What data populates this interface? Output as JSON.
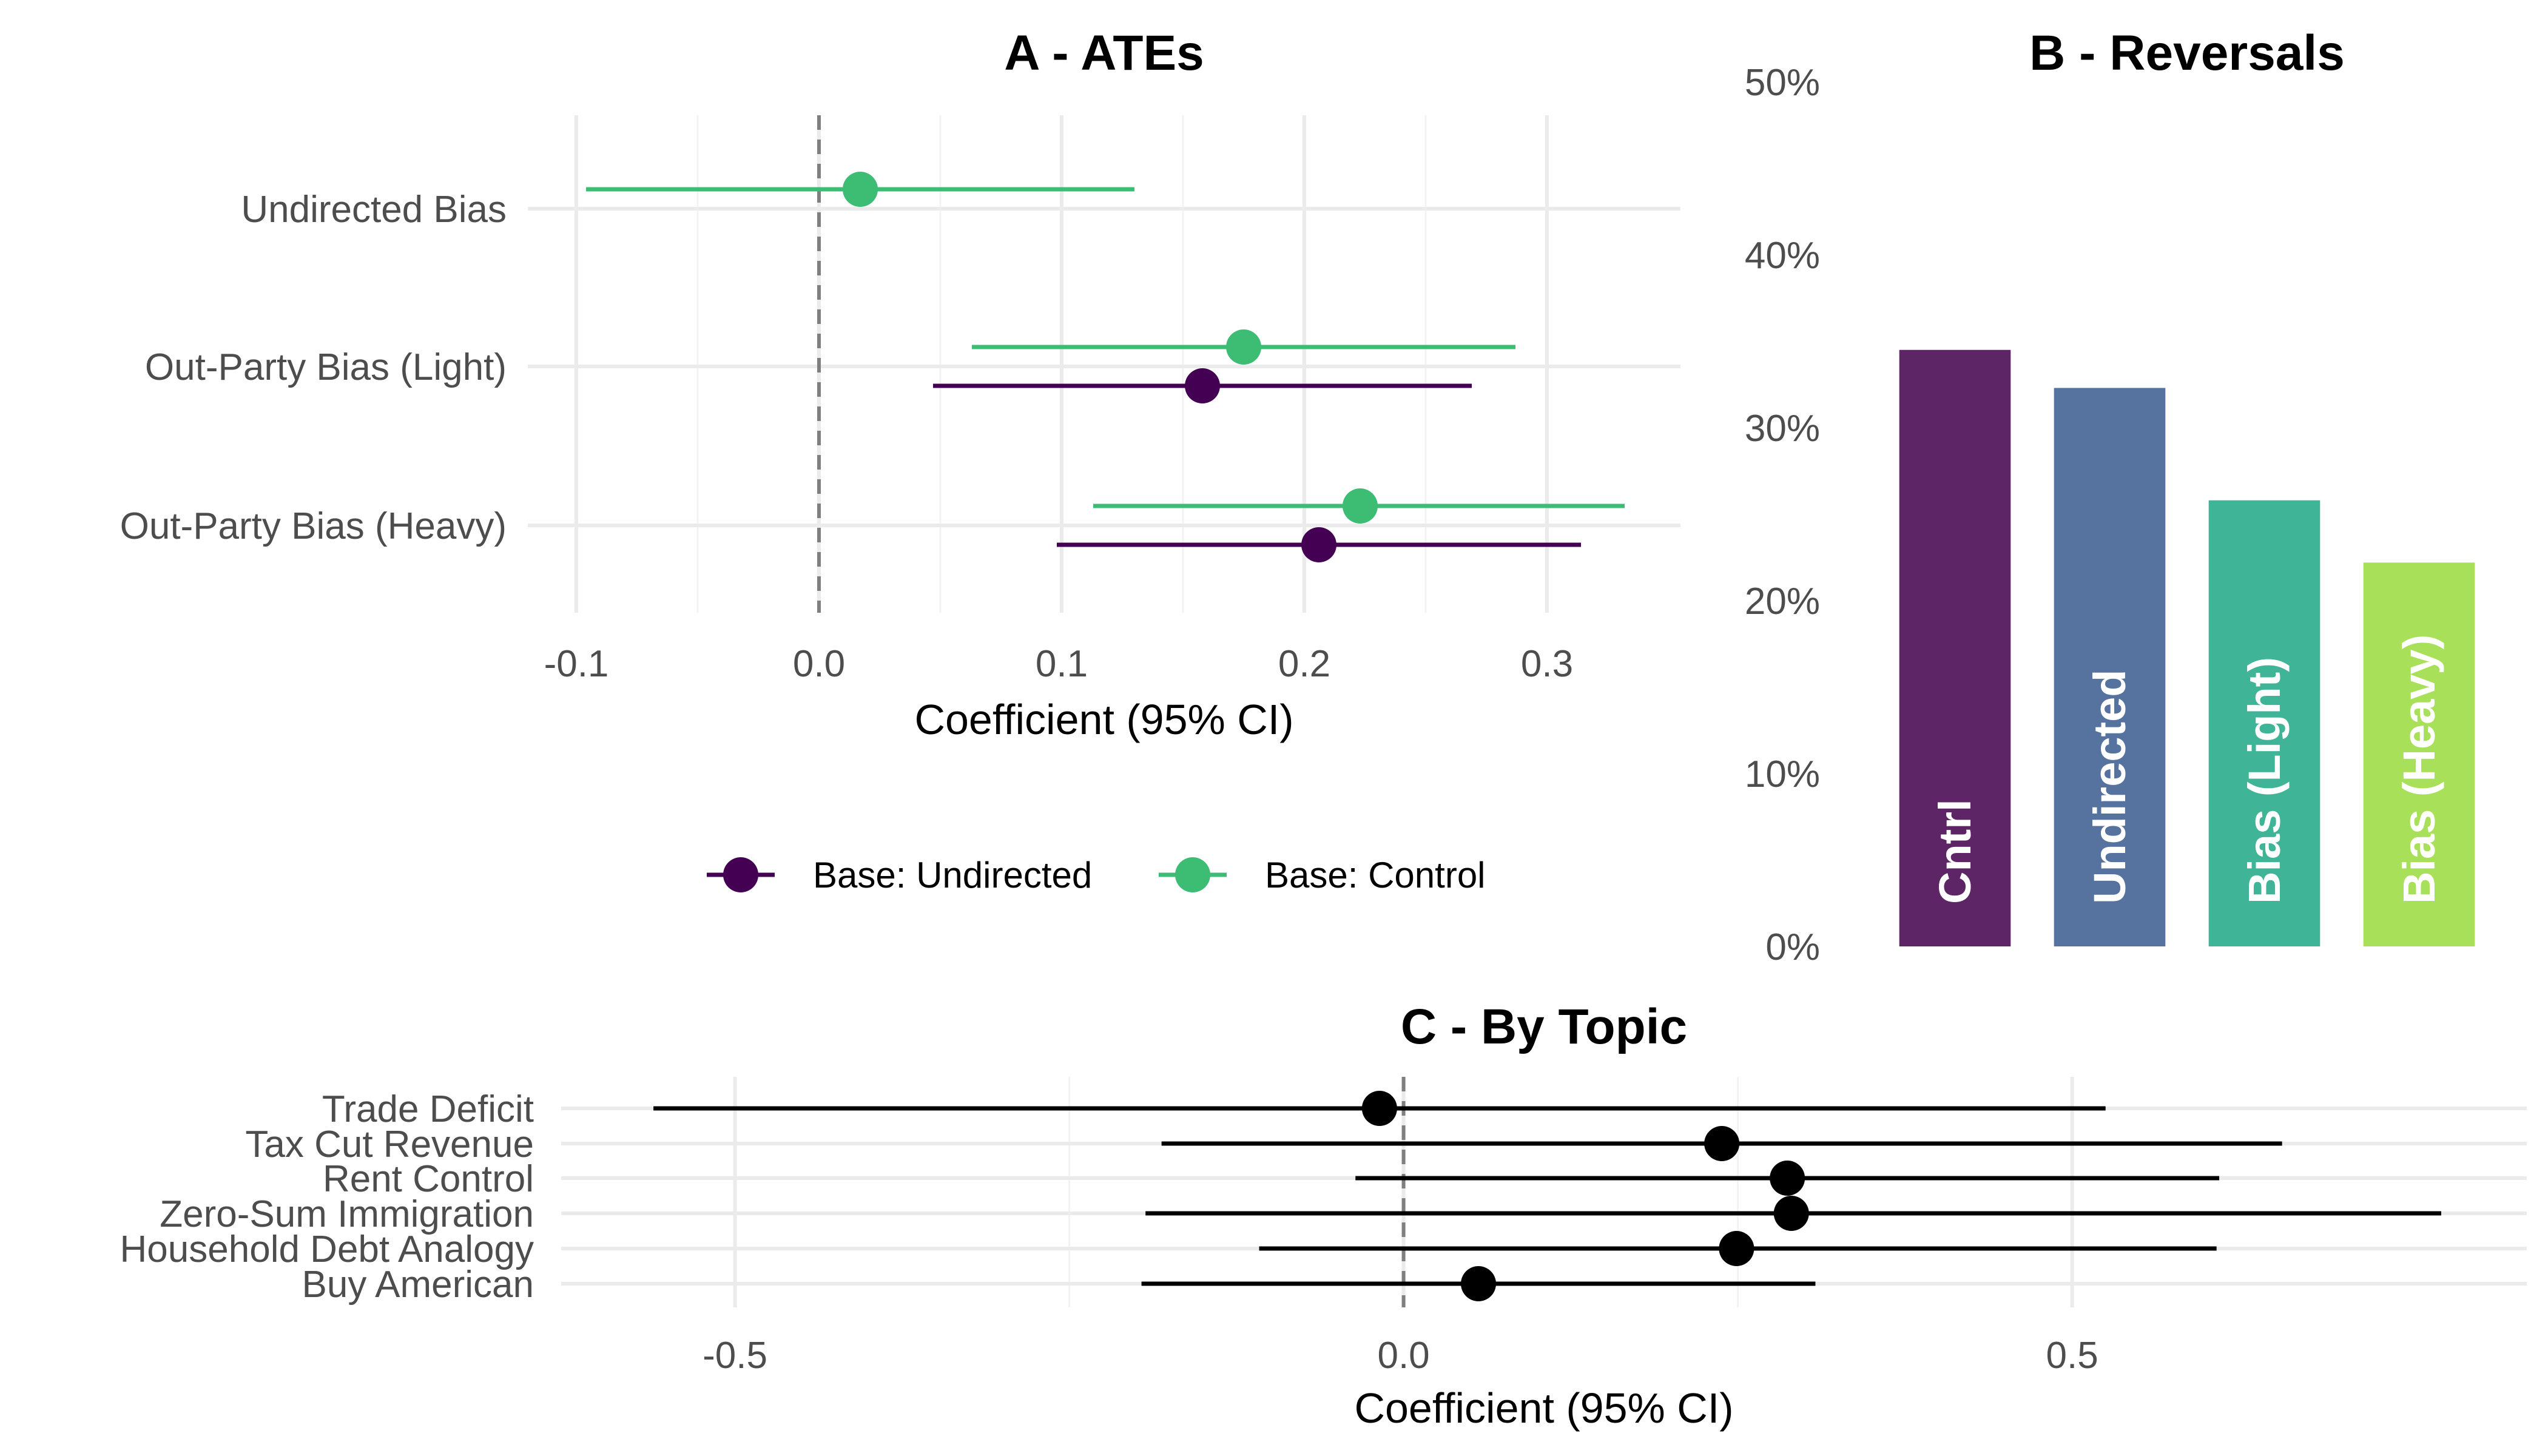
{
  "chart_data": [
    {
      "panel": "A",
      "type": "scatter",
      "subtype": "coefficient-plot",
      "title": "A - ATEs",
      "xlabel": "Coefficient (95% CI)",
      "ylabel": "",
      "xlim": [
        -0.12,
        0.355
      ],
      "xticks": [
        -0.1,
        0.0,
        0.1,
        0.2,
        0.3
      ],
      "xtick_labels": [
        "-0.1",
        "0.0",
        "0.1",
        "0.2",
        "0.3"
      ],
      "categories": [
        "Undirected Bias",
        "Out-Party Bias (Light)",
        "Out-Party Bias (Heavy)"
      ],
      "legend_position": "bottom",
      "series": [
        {
          "name": "Base: Undirected",
          "color": "#440154",
          "points": [
            {
              "category": "Out-Party Bias (Light)",
              "estimate": 0.158,
              "low": 0.047,
              "high": 0.269
            },
            {
              "category": "Out-Party Bias (Heavy)",
              "estimate": 0.206,
              "low": 0.098,
              "high": 0.314
            }
          ]
        },
        {
          "name": "Base: Control",
          "color": "#3dbc74",
          "points": [
            {
              "category": "Undirected Bias",
              "estimate": 0.017,
              "low": -0.096,
              "high": 0.13
            },
            {
              "category": "Out-Party Bias (Light)",
              "estimate": 0.175,
              "low": 0.063,
              "high": 0.287
            },
            {
              "category": "Out-Party Bias (Heavy)",
              "estimate": 0.223,
              "low": 0.113,
              "high": 0.332
            }
          ]
        }
      ]
    },
    {
      "panel": "B",
      "type": "bar",
      "title": "B - Reversals",
      "xlabel": "",
      "ylabel": "",
      "ylim": [
        0,
        50
      ],
      "yticks": [
        0,
        10,
        20,
        30,
        40,
        50
      ],
      "ytick_labels": [
        "0%",
        "10%",
        "20%",
        "30%",
        "40%",
        "50%"
      ],
      "categories": [
        "Cntrl",
        "Undirected",
        "Bias (Light)",
        "Bias (Heavy)"
      ],
      "values": [
        34.5,
        32.3,
        25.8,
        22.2
      ],
      "colors": [
        "#5d2466",
        "#56739f",
        "#40b497",
        "#a9e05a"
      ]
    },
    {
      "panel": "C",
      "type": "scatter",
      "subtype": "coefficient-plot",
      "title": "C - By Topic",
      "xlabel": "Coefficient (95% CI)",
      "ylabel": "",
      "xlim": [
        -0.63,
        0.84
      ],
      "xticks": [
        -0.5,
        0.0,
        0.5
      ],
      "xtick_labels": [
        "-0.5",
        "0.0",
        "0.5"
      ],
      "categories": [
        "Trade Deficit",
        "Tax Cut Revenue",
        "Rent Control",
        "Zero-Sum Immigration",
        "Household Debt Analogy",
        "Buy American"
      ],
      "series": [
        {
          "name": "Topic",
          "color": "#000000",
          "points": [
            {
              "category": "Trade Deficit",
              "estimate": -0.018,
              "low": -0.561,
              "high": 0.525
            },
            {
              "category": "Tax Cut Revenue",
              "estimate": 0.238,
              "low": -0.181,
              "high": 0.657
            },
            {
              "category": "Rent Control",
              "estimate": 0.287,
              "low": -0.036,
              "high": 0.61
            },
            {
              "category": "Zero-Sum Immigration",
              "estimate": 0.29,
              "low": -0.193,
              "high": 0.776
            },
            {
              "category": "Household Debt Analogy",
              "estimate": 0.249,
              "low": -0.108,
              "high": 0.608
            },
            {
              "category": "Buy American",
              "estimate": 0.056,
              "low": -0.196,
              "high": 0.308
            }
          ]
        }
      ]
    }
  ]
}
